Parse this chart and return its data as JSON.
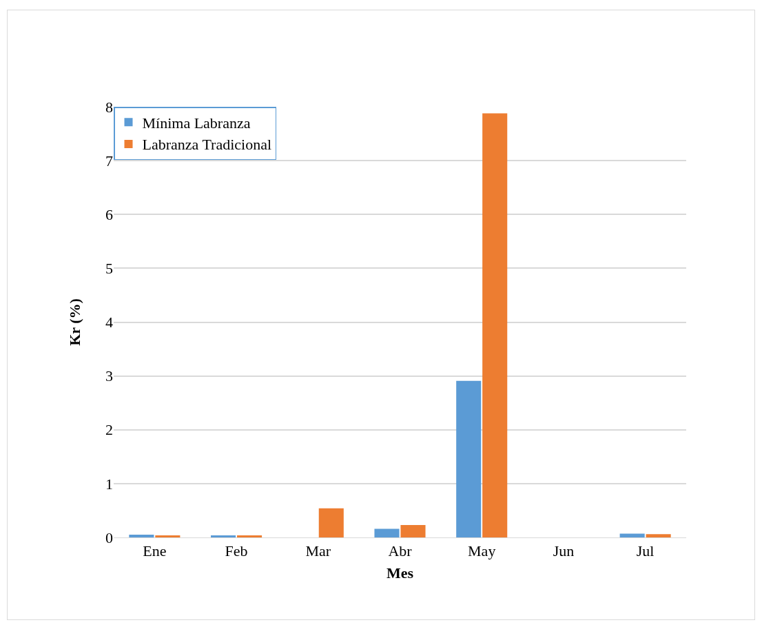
{
  "chart_data": {
    "type": "bar",
    "xlabel": "Mes",
    "ylabel": "Kr (%)",
    "categories": [
      "Ene",
      "Feb",
      "Mar",
      "Abr",
      "May",
      "Jun",
      "Jul"
    ],
    "series": [
      {
        "name": "Mínima Labranza",
        "color": "#5b9bd5",
        "values": [
          0.05,
          0.04,
          0,
          0.16,
          2.91,
          0,
          0.07
        ]
      },
      {
        "name": "Labranza Tradicional",
        "color": "#ed7d31",
        "values": [
          0.04,
          0.04,
          0.54,
          0.23,
          7.88,
          0,
          0.06
        ]
      }
    ],
    "ylim": [
      0,
      8
    ],
    "yticks": [
      0,
      1,
      2,
      3,
      4,
      5,
      6,
      7,
      8
    ],
    "grid": "y",
    "legend": "top left"
  }
}
